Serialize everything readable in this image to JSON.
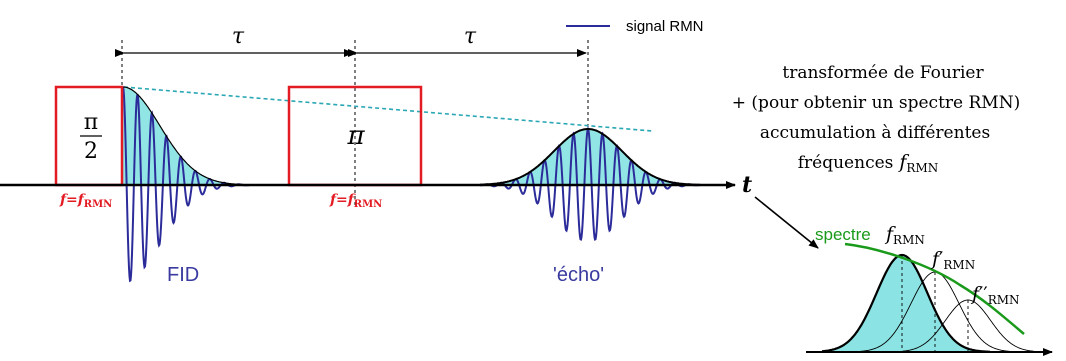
{
  "legend": {
    "label": "signal RMN",
    "color": "#2b2c9a"
  },
  "spacing": {
    "first": "τ",
    "second": "τ"
  },
  "pulses": [
    {
      "symbol_num": "π",
      "symbol_den": "2",
      "freq_prefix": "f=f",
      "freq_sub": "RMN",
      "color": "#e31b23"
    },
    {
      "symbol": "π",
      "freq_prefix": "f=f",
      "freq_sub": "RMN",
      "color": "#e31b23"
    }
  ],
  "signals": {
    "fid": "FID",
    "echo": "'écho'"
  },
  "time_axis": "t",
  "note": {
    "line1": "transformée de Fourier",
    "line2": "+ (pour obtenir un spectre RMN)",
    "line3": "accumulation à différentes",
    "line4_text": "fréquences",
    "line4_symbol": "f",
    "line4_sub": "RMN"
  },
  "spectrum": {
    "label": "spectre",
    "label_color": "#1a9a1a",
    "peaks": [
      {
        "symbol": "f",
        "prime": "",
        "sub": "RMN"
      },
      {
        "symbol": "f",
        "prime": "′",
        "sub": "RMN"
      },
      {
        "symbol": "f",
        "prime": "′′",
        "sub": "RMN"
      }
    ]
  },
  "colors": {
    "fill": "#7fe0e0",
    "dashed": "#2aa7b5",
    "pulse": "#e31b23",
    "signal": "#2b2c9a",
    "axis": "#000000"
  }
}
